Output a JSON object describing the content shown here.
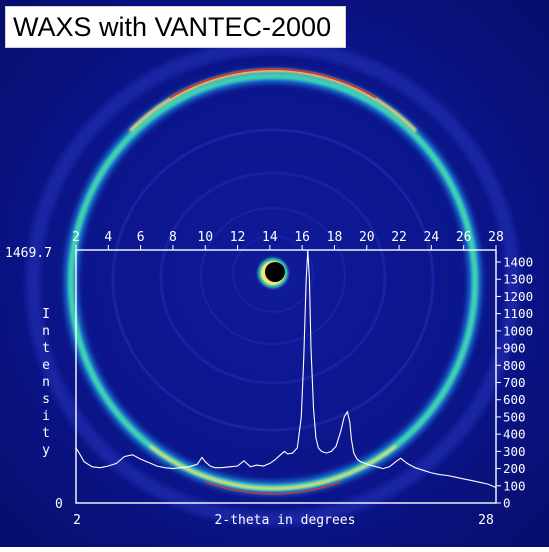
{
  "title": "WAXS with VANTEC-2000",
  "colors": {
    "background": "#0a0f7a",
    "plot_line": "#ffffff",
    "ring_outer": "#3dd2b0",
    "ring_peak": "#ffe070",
    "ring_core": "#e03020"
  },
  "chart_data": {
    "type": "line",
    "title": "",
    "xlabel": "2-theta in degrees",
    "ylabel": "Intensity",
    "xlim": [
      2,
      28
    ],
    "ylim": [
      0,
      1469.7
    ],
    "y_top_label": "1469.7",
    "y_bottom_label": "0",
    "x_ticks_top": [
      2,
      4,
      6,
      8,
      10,
      12,
      14,
      16,
      18,
      20,
      22,
      24,
      26,
      28
    ],
    "x_ticks_bottom": [
      "2",
      "28"
    ],
    "y_ticks_right": [
      0,
      100,
      200,
      300,
      400,
      500,
      600,
      700,
      800,
      900,
      1000,
      1100,
      1200,
      1300,
      1400
    ],
    "grid": false,
    "legend": "none",
    "series": [
      {
        "x": [
          2.0,
          2.2,
          2.5,
          3.0,
          3.5,
          4.0,
          4.5,
          5.0,
          5.5,
          6.0,
          6.5,
          7.0,
          7.5,
          8.0,
          8.5,
          9.0,
          9.5,
          9.8,
          10.0,
          10.3,
          10.6,
          11.0,
          11.5,
          12.0,
          12.4,
          12.8,
          13.2,
          13.6,
          14.0,
          14.3,
          14.6,
          14.9,
          15.1,
          15.4,
          15.7,
          15.95,
          16.1,
          16.25,
          16.35,
          16.45,
          16.55,
          16.7,
          16.85,
          17.0,
          17.2,
          17.5,
          17.8,
          18.1,
          18.4,
          18.6,
          18.8,
          18.95,
          19.05,
          19.2,
          19.4,
          19.6,
          19.9,
          20.2,
          20.6,
          21.0,
          21.4,
          21.8,
          22.1,
          22.5,
          23.0,
          23.5,
          24.0,
          24.5,
          25.0,
          25.5,
          26.0,
          26.5,
          27.0,
          27.5,
          28.0
        ],
        "values": [
          320,
          290,
          240,
          210,
          205,
          215,
          230,
          270,
          280,
          255,
          235,
          215,
          205,
          200,
          205,
          210,
          225,
          265,
          240,
          215,
          205,
          205,
          210,
          215,
          245,
          210,
          220,
          215,
          230,
          250,
          275,
          300,
          285,
          290,
          320,
          500,
          850,
          1300,
          1469,
          1300,
          900,
          550,
          380,
          320,
          300,
          290,
          300,
          330,
          420,
          500,
          530,
          470,
          370,
          290,
          255,
          240,
          230,
          220,
          210,
          200,
          210,
          240,
          260,
          230,
          205,
          190,
          175,
          165,
          160,
          150,
          140,
          130,
          120,
          110,
          90
        ]
      }
    ]
  }
}
